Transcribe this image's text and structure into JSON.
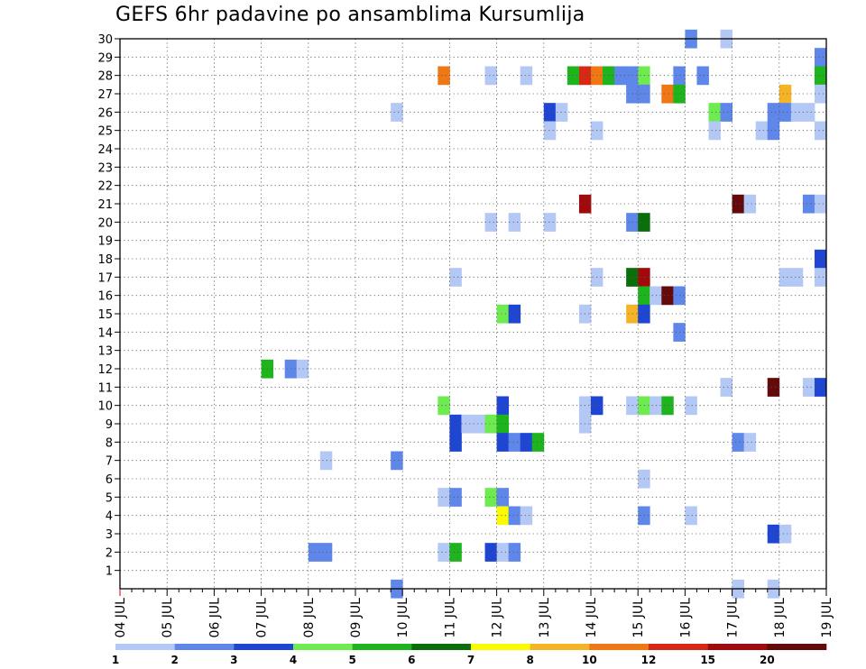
{
  "chart_data": {
    "type": "heatmap",
    "title": "GEFS 6hr padavine po ansamblima Kursumlija",
    "xlabel": "",
    "ylabel": "",
    "x_categories": [
      "04 JUL",
      "05 JUL",
      "06 JUL",
      "07 JUL",
      "08 JUL",
      "09 JUL",
      "10 JUL",
      "11 JUL",
      "12 JUL",
      "13 JUL",
      "14 JUL",
      "15 JUL",
      "16 JUL",
      "17 JUL",
      "18 JUL",
      "19 JUL"
    ],
    "x_range": [
      0,
      60
    ],
    "x_step_per_day": 4,
    "y_ticks": [
      1,
      2,
      3,
      4,
      5,
      6,
      7,
      8,
      9,
      10,
      11,
      12,
      13,
      14,
      15,
      16,
      17,
      18,
      19,
      20,
      21,
      22,
      23,
      24,
      25,
      26,
      27,
      28,
      29,
      30
    ],
    "y_range": [
      0,
      30
    ],
    "grid": true,
    "legend": {
      "placement": "bottom",
      "labels": [
        "1",
        "2",
        "3",
        "4",
        "5",
        "6",
        "7",
        "8",
        "10",
        "12",
        "15",
        "20"
      ],
      "colors": [
        "#b4c8f5",
        "#5f87ea",
        "#1e46d2",
        "#6eeb50",
        "#1eb41e",
        "#0a6e0a",
        "#fafa00",
        "#f5b428",
        "#f07814",
        "#d72814",
        "#a00a0a",
        "#640a0a"
      ]
    },
    "cells": [
      {
        "m": 30,
        "t": 48,
        "c": 1
      },
      {
        "m": 30,
        "t": 51,
        "c": 0
      },
      {
        "m": 29,
        "t": 59,
        "c": 1
      },
      {
        "m": 28,
        "t": 27,
        "c": 8
      },
      {
        "m": 28,
        "t": 31,
        "c": 0
      },
      {
        "m": 28,
        "t": 34,
        "c": 0
      },
      {
        "m": 28,
        "t": 38,
        "c": 4
      },
      {
        "m": 28,
        "t": 39,
        "c": 9
      },
      {
        "m": 28,
        "t": 40,
        "c": 8
      },
      {
        "m": 28,
        "t": 41,
        "c": 4
      },
      {
        "m": 28,
        "t": 42,
        "c": 1
      },
      {
        "m": 28,
        "t": 43,
        "c": 1
      },
      {
        "m": 28,
        "t": 44,
        "c": 3
      },
      {
        "m": 28,
        "t": 47,
        "c": 1
      },
      {
        "m": 28,
        "t": 49,
        "c": 1
      },
      {
        "m": 28,
        "t": 59,
        "c": 4
      },
      {
        "m": 27,
        "t": 43,
        "c": 1
      },
      {
        "m": 27,
        "t": 44,
        "c": 1
      },
      {
        "m": 27,
        "t": 46,
        "c": 8
      },
      {
        "m": 27,
        "t": 47,
        "c": 4
      },
      {
        "m": 27,
        "t": 56,
        "c": 7
      },
      {
        "m": 27,
        "t": 59,
        "c": 0
      },
      {
        "m": 26,
        "t": 23,
        "c": 0
      },
      {
        "m": 26,
        "t": 36,
        "c": 2
      },
      {
        "m": 26,
        "t": 37,
        "c": 0
      },
      {
        "m": 26,
        "t": 50,
        "c": 3
      },
      {
        "m": 26,
        "t": 51,
        "c": 1
      },
      {
        "m": 26,
        "t": 55,
        "c": 1
      },
      {
        "m": 26,
        "t": 56,
        "c": 1
      },
      {
        "m": 26,
        "t": 57,
        "c": 0
      },
      {
        "m": 26,
        "t": 58,
        "c": 0
      },
      {
        "m": 25,
        "t": 36,
        "c": 0
      },
      {
        "m": 25,
        "t": 40,
        "c": 0
      },
      {
        "m": 25,
        "t": 50,
        "c": 0
      },
      {
        "m": 25,
        "t": 54,
        "c": 0
      },
      {
        "m": 25,
        "t": 55,
        "c": 1
      },
      {
        "m": 25,
        "t": 59,
        "c": 0
      },
      {
        "m": 21,
        "t": 39,
        "c": 10
      },
      {
        "m": 21,
        "t": 52,
        "c": 11
      },
      {
        "m": 21,
        "t": 53,
        "c": 0
      },
      {
        "m": 21,
        "t": 58,
        "c": 1
      },
      {
        "m": 21,
        "t": 59,
        "c": 0
      },
      {
        "m": 20,
        "t": 31,
        "c": 0
      },
      {
        "m": 20,
        "t": 33,
        "c": 0
      },
      {
        "m": 20,
        "t": 36,
        "c": 0
      },
      {
        "m": 20,
        "t": 43,
        "c": 1
      },
      {
        "m": 20,
        "t": 44,
        "c": 5
      },
      {
        "m": 18,
        "t": 59,
        "c": 2
      },
      {
        "m": 17,
        "t": 28,
        "c": 0
      },
      {
        "m": 17,
        "t": 40,
        "c": 0
      },
      {
        "m": 17,
        "t": 43,
        "c": 5
      },
      {
        "m": 17,
        "t": 44,
        "c": 10
      },
      {
        "m": 17,
        "t": 56,
        "c": 0
      },
      {
        "m": 17,
        "t": 57,
        "c": 0
      },
      {
        "m": 17,
        "t": 59,
        "c": 0
      },
      {
        "m": 16,
        "t": 44,
        "c": 4
      },
      {
        "m": 16,
        "t": 45,
        "c": 0
      },
      {
        "m": 16,
        "t": 46,
        "c": 11
      },
      {
        "m": 16,
        "t": 47,
        "c": 1
      },
      {
        "m": 15,
        "t": 32,
        "c": 3
      },
      {
        "m": 15,
        "t": 33,
        "c": 2
      },
      {
        "m": 15,
        "t": 39,
        "c": 0
      },
      {
        "m": 15,
        "t": 43,
        "c": 7
      },
      {
        "m": 15,
        "t": 44,
        "c": 2
      },
      {
        "m": 14,
        "t": 47,
        "c": 1
      },
      {
        "m": 12,
        "t": 12,
        "c": 4
      },
      {
        "m": 12,
        "t": 14,
        "c": 1
      },
      {
        "m": 12,
        "t": 15,
        "c": 0
      },
      {
        "m": 11,
        "t": 51,
        "c": 0
      },
      {
        "m": 11,
        "t": 55,
        "c": 11
      },
      {
        "m": 11,
        "t": 58,
        "c": 0
      },
      {
        "m": 11,
        "t": 59,
        "c": 2
      },
      {
        "m": 10,
        "t": 27,
        "c": 3
      },
      {
        "m": 10,
        "t": 32,
        "c": 2
      },
      {
        "m": 10,
        "t": 39,
        "c": 0
      },
      {
        "m": 10,
        "t": 40,
        "c": 2
      },
      {
        "m": 10,
        "t": 43,
        "c": 0
      },
      {
        "m": 10,
        "t": 44,
        "c": 3
      },
      {
        "m": 10,
        "t": 45,
        "c": 0
      },
      {
        "m": 10,
        "t": 46,
        "c": 4
      },
      {
        "m": 10,
        "t": 48,
        "c": 0
      },
      {
        "m": 9,
        "t": 28,
        "c": 2
      },
      {
        "m": 9,
        "t": 29,
        "c": 0
      },
      {
        "m": 9,
        "t": 30,
        "c": 0
      },
      {
        "m": 9,
        "t": 31,
        "c": 3
      },
      {
        "m": 9,
        "t": 32,
        "c": 4
      },
      {
        "m": 9,
        "t": 39,
        "c": 0
      },
      {
        "m": 8,
        "t": 28,
        "c": 2
      },
      {
        "m": 8,
        "t": 32,
        "c": 2
      },
      {
        "m": 8,
        "t": 33,
        "c": 1
      },
      {
        "m": 8,
        "t": 34,
        "c": 2
      },
      {
        "m": 8,
        "t": 35,
        "c": 4
      },
      {
        "m": 8,
        "t": 52,
        "c": 1
      },
      {
        "m": 8,
        "t": 53,
        "c": 0
      },
      {
        "m": 7,
        "t": 17,
        "c": 0
      },
      {
        "m": 7,
        "t": 23,
        "c": 1
      },
      {
        "m": 6,
        "t": 44,
        "c": 0
      },
      {
        "m": 5,
        "t": 27,
        "c": 0
      },
      {
        "m": 5,
        "t": 28,
        "c": 1
      },
      {
        "m": 5,
        "t": 31,
        "c": 3
      },
      {
        "m": 5,
        "t": 32,
        "c": 1
      },
      {
        "m": 4,
        "t": 32,
        "c": 6
      },
      {
        "m": 4,
        "t": 33,
        "c": 1
      },
      {
        "m": 4,
        "t": 34,
        "c": 0
      },
      {
        "m": 4,
        "t": 44,
        "c": 1
      },
      {
        "m": 4,
        "t": 48,
        "c": 0
      },
      {
        "m": 3,
        "t": 55,
        "c": 2
      },
      {
        "m": 3,
        "t": 56,
        "c": 0
      },
      {
        "m": 2,
        "t": 16,
        "c": 1
      },
      {
        "m": 2,
        "t": 17,
        "c": 1
      },
      {
        "m": 2,
        "t": 27,
        "c": 0
      },
      {
        "m": 2,
        "t": 28,
        "c": 4
      },
      {
        "m": 2,
        "t": 31,
        "c": 2
      },
      {
        "m": 2,
        "t": 32,
        "c": 0
      },
      {
        "m": 2,
        "t": 33,
        "c": 1
      },
      {
        "m": 0,
        "t": 23,
        "c": 1
      },
      {
        "m": 0,
        "t": 52,
        "c": 0
      },
      {
        "m": 0,
        "t": 55,
        "c": 0
      }
    ]
  }
}
